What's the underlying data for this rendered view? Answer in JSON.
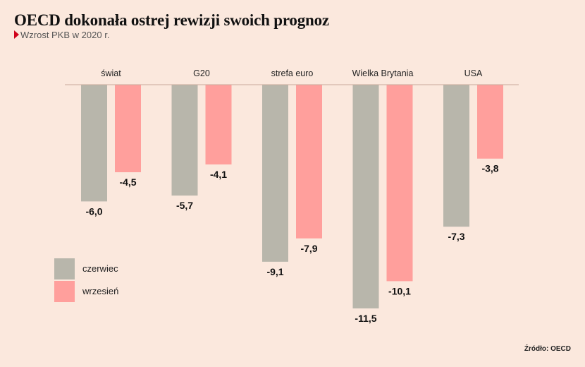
{
  "colors": {
    "background": "#fbe8dd",
    "june": "#b8b6ab",
    "september": "#ff9f9c",
    "subtitle_marker": "#d0021b"
  },
  "source": "Źródło: OECD",
  "chart_data": {
    "type": "bar",
    "title": "OECD dokonała ostrej rewizji swoich prognoz",
    "subtitle": "Wzrost PKB w 2020 r.",
    "categories": [
      "świat",
      "G20",
      "strefa euro",
      "Wielka Brytania",
      "USA"
    ],
    "series": [
      {
        "name": "czerwiec",
        "values": [
          -6.0,
          -5.7,
          -9.1,
          -11.5,
          -7.3
        ],
        "labels": [
          "-6,0",
          "-5,7",
          "-9,1",
          "-11,5",
          "-7,3"
        ]
      },
      {
        "name": "wrzesień",
        "values": [
          -4.5,
          -4.1,
          -7.9,
          -10.1,
          -3.8
        ],
        "labels": [
          "-4,5",
          "-4,1",
          "-7,9",
          "-10,1",
          "-3,8"
        ]
      }
    ],
    "ylim": [
      -11.5,
      0
    ],
    "grid": false,
    "legend_position": "bottom-left",
    "xlabel": "",
    "ylabel": ""
  }
}
